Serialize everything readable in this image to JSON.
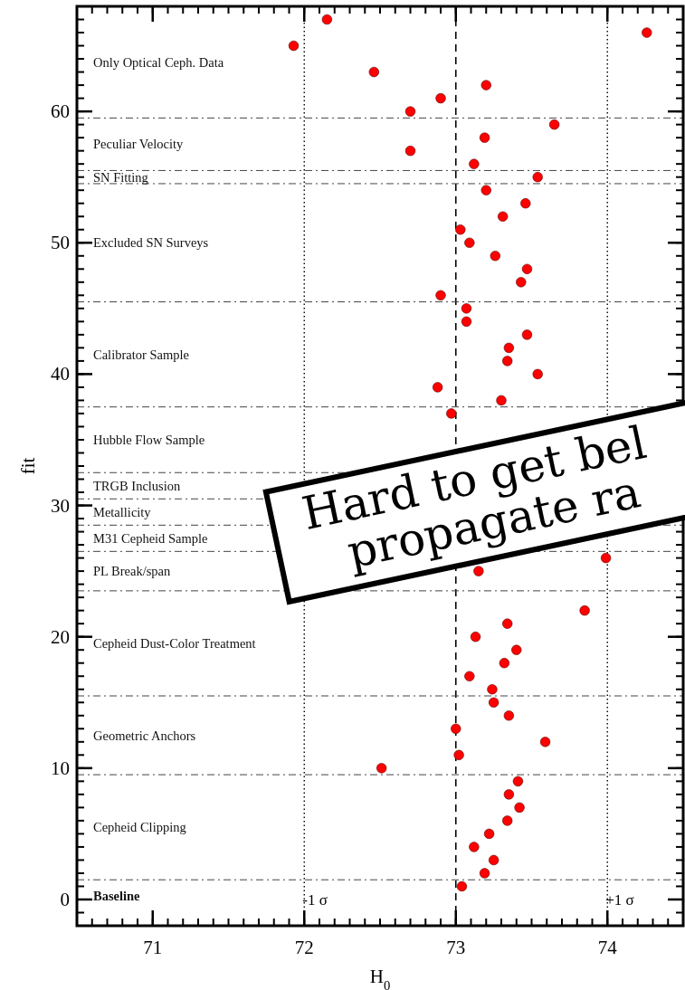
{
  "chart_data": {
    "type": "scatter",
    "xlabel": "H$_{0}$",
    "ylabel": "fit",
    "xlim": [
      70.5,
      74.5
    ],
    "xticks": [
      71,
      72,
      73,
      74
    ],
    "ylim": [
      -2,
      68
    ],
    "yticks": [
      0,
      10,
      20,
      30,
      40,
      50,
      60
    ],
    "marker": "circle",
    "series": [
      {
        "color": "#ff0000",
        "x": [
          73.04,
          73.19,
          73.25,
          73.12,
          73.22,
          73.34,
          73.42,
          73.35,
          73.41,
          72.51,
          73.02,
          73.59,
          73.0,
          73.35,
          73.25,
          73.24,
          73.09,
          73.32,
          73.4,
          73.13,
          73.34,
          73.85,
          73.15,
          73.99,
          72.97,
          73.3,
          72.88,
          73.54,
          73.34,
          73.35,
          73.47,
          73.07,
          73.07,
          72.9,
          73.43,
          73.47,
          73.26,
          73.09,
          73.03,
          73.31,
          73.46,
          73.2,
          73.54,
          73.12,
          72.7,
          73.19,
          73.65,
          72.7,
          72.9,
          73.2,
          72.46,
          71.93,
          74.26,
          72.15
        ],
        "values": [
          1,
          2,
          3,
          4,
          5,
          6,
          7,
          8,
          9,
          10,
          11,
          12,
          13,
          14,
          15,
          16,
          17,
          18,
          19,
          20,
          21,
          22,
          25,
          26,
          37,
          38,
          39,
          40,
          41,
          42,
          43,
          44,
          45,
          46,
          47,
          48,
          49,
          50,
          51,
          52,
          53,
          54,
          55,
          56,
          57,
          58,
          59,
          60,
          61,
          62,
          63,
          65,
          66,
          67
        ]
      }
    ],
    "ref_lines": [
      {
        "axis": "x",
        "value": 72,
        "label": "-1 σ",
        "line_style": "dotted"
      },
      {
        "axis": "x",
        "value": 73,
        "label": null,
        "line_style": "dashed"
      },
      {
        "axis": "x",
        "value": 74,
        "label": "+1 σ",
        "line_style": "dotted"
      },
      {
        "axis": "y",
        "value": 1.5,
        "label": null
      },
      {
        "axis": "y",
        "value": 9.5,
        "label": null
      },
      {
        "axis": "y",
        "value": 15.5,
        "label": null
      },
      {
        "axis": "y",
        "value": 23.5,
        "label": null
      },
      {
        "axis": "y",
        "value": 26.5,
        "label": null
      },
      {
        "axis": "y",
        "value": 28.5,
        "label": null
      },
      {
        "axis": "y",
        "value": 30.5,
        "label": null
      },
      {
        "axis": "y",
        "value": 32.5,
        "label": null
      },
      {
        "axis": "y",
        "value": 37.5,
        "label": null
      },
      {
        "axis": "y",
        "value": 45.5,
        "label": null
      },
      {
        "axis": "y",
        "value": 54.5,
        "label": null
      },
      {
        "axis": "y",
        "value": 55.5,
        "label": null
      },
      {
        "axis": "y",
        "value": 59.5,
        "label": null
      }
    ],
    "annotations": [
      "Baseline",
      "Cepheid Clipping",
      "Geometric Anchors",
      "Cepheid Dust-Color Treatment",
      "PL Break/span",
      "M31 Cepheid Sample",
      "Metallicity",
      "TRGB Inclusion",
      "Hubble Flow Sample",
      "Calibrator Sample",
      "Excluded SN Surveys",
      "SN Fitting",
      "Peculiar Velocity",
      "Only Optical Ceph. Data",
      "Hard to get bel",
      "propagate ra"
    ]
  }
}
